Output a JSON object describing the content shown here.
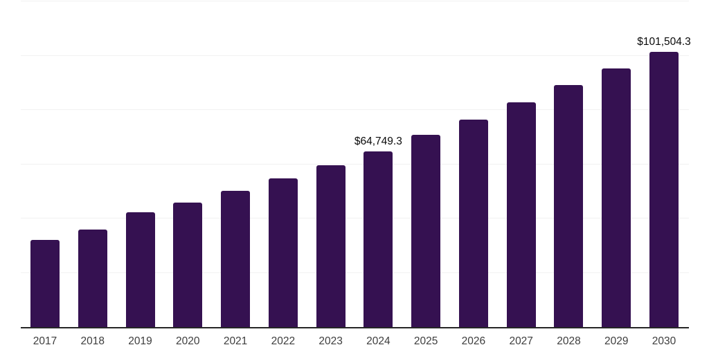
{
  "chart_data": {
    "type": "bar",
    "title": "",
    "xlabel": "",
    "ylabel": "",
    "categories": [
      "2017",
      "2018",
      "2019",
      "2020",
      "2021",
      "2022",
      "2023",
      "2024",
      "2025",
      "2026",
      "2027",
      "2028",
      "2029",
      "2030"
    ],
    "values": [
      32100,
      35900,
      42300,
      45800,
      50200,
      54800,
      59600,
      64749.3,
      70800,
      76400,
      82700,
      89100,
      95200,
      101504.3
    ],
    "value_labels": {
      "2024": "$64,749.3",
      "2030": "$101,504.3"
    },
    "ylim": [
      0,
      120000
    ],
    "gridline_step": 20000,
    "grid": true,
    "legend": "none",
    "y_axis_labels_visible": false,
    "colors": {
      "bar": "#351151",
      "gridline": "#f1f1f1",
      "axis_line": "#262626",
      "tick_label": "#3d3d3d",
      "value_label": "#0a0a0a",
      "background": "#ffffff"
    }
  }
}
